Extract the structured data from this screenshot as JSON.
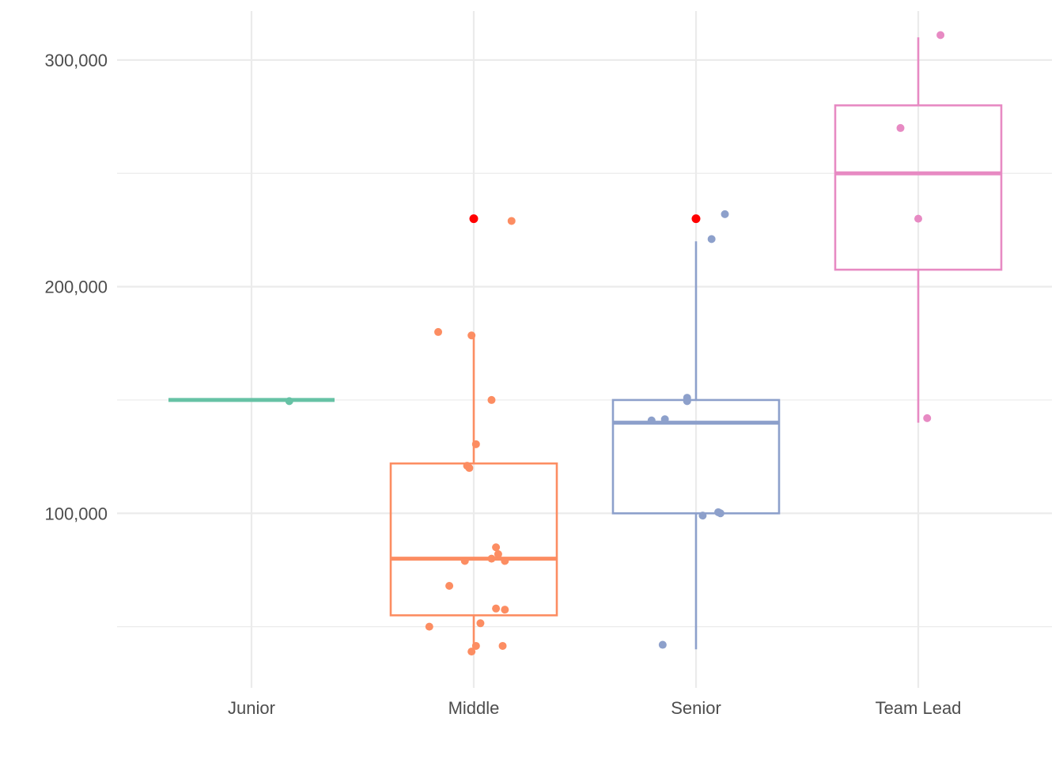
{
  "chart_data": {
    "type": "box",
    "title": "",
    "xlabel": "",
    "ylabel": "",
    "categories": [
      "Junior",
      "Middle",
      "Senior",
      "Team Lead"
    ],
    "colors": [
      "#66c2a5",
      "#fc8d62",
      "#8da0cb",
      "#e78ac3"
    ],
    "outlier_color": "#ff0000",
    "ylim": [
      23000,
      323000
    ],
    "y_ticks": [
      100000,
      200000,
      300000
    ],
    "y_tick_labels": [
      "100,000",
      "200,000",
      "300,000"
    ],
    "grid": true,
    "legend": "none",
    "boxes": [
      {
        "category": "Junior",
        "q1": 150000,
        "median": 150000,
        "q3": 150000,
        "whisker_low": 150000,
        "whisker_high": 150000,
        "outliers": []
      },
      {
        "category": "Middle",
        "q1": 55000,
        "median": 80000,
        "q3": 122000,
        "whisker_low": 40000,
        "whisker_high": 178000,
        "outliers": [
          230000
        ]
      },
      {
        "category": "Senior",
        "q1": 100000,
        "median": 140000,
        "q3": 150000,
        "whisker_low": 40000,
        "whisker_high": 220000,
        "outliers": [
          230000
        ]
      },
      {
        "category": "Team Lead",
        "q1": 207500,
        "median": 250000,
        "q3": 280000,
        "whisker_low": 140000,
        "whisker_high": 310000,
        "outliers": []
      }
    ],
    "points": [
      {
        "category": "Junior",
        "x_offset": 0.17,
        "y": 149500
      },
      {
        "category": "Middle",
        "x_offset": 0.17,
        "y": 229000
      },
      {
        "category": "Middle",
        "x_offset": -0.16,
        "y": 180000
      },
      {
        "category": "Middle",
        "x_offset": -0.01,
        "y": 178500
      },
      {
        "category": "Middle",
        "x_offset": 0.08,
        "y": 150000
      },
      {
        "category": "Middle",
        "x_offset": 0.01,
        "y": 130500
      },
      {
        "category": "Middle",
        "x_offset": -0.03,
        "y": 121000
      },
      {
        "category": "Middle",
        "x_offset": -0.02,
        "y": 120000
      },
      {
        "category": "Middle",
        "x_offset": 0.1,
        "y": 85000
      },
      {
        "category": "Middle",
        "x_offset": 0.11,
        "y": 82000
      },
      {
        "category": "Middle",
        "x_offset": 0.08,
        "y": 80000
      },
      {
        "category": "Middle",
        "x_offset": -0.04,
        "y": 79000
      },
      {
        "category": "Middle",
        "x_offset": 0.14,
        "y": 79000
      },
      {
        "category": "Middle",
        "x_offset": -0.11,
        "y": 68000
      },
      {
        "category": "Middle",
        "x_offset": 0.1,
        "y": 58000
      },
      {
        "category": "Middle",
        "x_offset": 0.14,
        "y": 57500
      },
      {
        "category": "Middle",
        "x_offset": 0.03,
        "y": 51500
      },
      {
        "category": "Middle",
        "x_offset": -0.2,
        "y": 50000
      },
      {
        "category": "Middle",
        "x_offset": 0.01,
        "y": 41500
      },
      {
        "category": "Middle",
        "x_offset": 0.13,
        "y": 41500
      },
      {
        "category": "Middle",
        "x_offset": -0.01,
        "y": 39000
      },
      {
        "category": "Senior",
        "x_offset": 0.13,
        "y": 232000
      },
      {
        "category": "Senior",
        "x_offset": 0.07,
        "y": 221000
      },
      {
        "category": "Senior",
        "x_offset": -0.04,
        "y": 151000
      },
      {
        "category": "Senior",
        "x_offset": -0.04,
        "y": 149500
      },
      {
        "category": "Senior",
        "x_offset": -0.2,
        "y": 141000
      },
      {
        "category": "Senior",
        "x_offset": -0.14,
        "y": 141500
      },
      {
        "category": "Senior",
        "x_offset": 0.1,
        "y": 100500
      },
      {
        "category": "Senior",
        "x_offset": 0.11,
        "y": 100000
      },
      {
        "category": "Senior",
        "x_offset": 0.03,
        "y": 99000
      },
      {
        "category": "Senior",
        "x_offset": -0.15,
        "y": 42000
      },
      {
        "category": "Team Lead",
        "x_offset": 0.1,
        "y": 311000
      },
      {
        "category": "Team Lead",
        "x_offset": -0.08,
        "y": 270000
      },
      {
        "category": "Team Lead",
        "x_offset": 0.0,
        "y": 230000
      },
      {
        "category": "Team Lead",
        "x_offset": 0.04,
        "y": 142000
      }
    ]
  }
}
